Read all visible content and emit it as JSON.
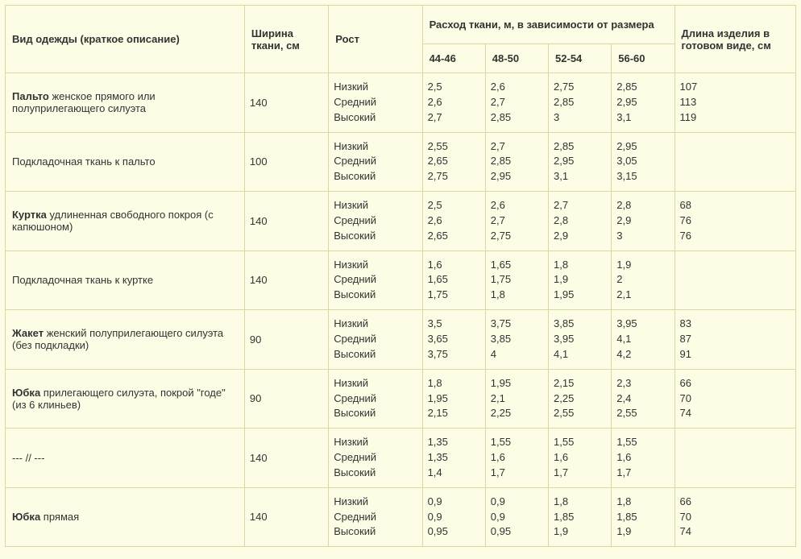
{
  "headers": {
    "desc": "Вид одежды (краткое описание)",
    "width": "Ширина ткани, см",
    "rost": "Рост",
    "fabric_group": "Расход ткани, м, в зависимости от размера",
    "sizes": [
      "44-46",
      "48-50",
      "52-54",
      "56-60"
    ],
    "length": "Длина изделия в готовом виде, см"
  },
  "heights": [
    "Низкий",
    "Средний",
    "Высокий"
  ],
  "rows": [
    {
      "desc_bold": "Пальто",
      "desc_rest": " женское прямого или полуприлегающего силуэта",
      "width": "140",
      "vals": [
        [
          "2,5",
          "2,6",
          "2,75",
          "2,85"
        ],
        [
          "2,6",
          "2,7",
          "2,85",
          "2,95"
        ],
        [
          "2,7",
          "2,85",
          "3",
          "3,1"
        ]
      ],
      "len": [
        "107",
        "113",
        "119"
      ]
    },
    {
      "desc_bold": "",
      "desc_rest": "Подкладочная ткань к пальто",
      "width": "100",
      "vals": [
        [
          "2,55",
          "2,7",
          "2,85",
          "2,95"
        ],
        [
          "2,65",
          "2,85",
          "2,95",
          "3,05"
        ],
        [
          "2,75",
          "2,95",
          "3,1",
          "3,15"
        ]
      ],
      "len": [
        "",
        "",
        ""
      ]
    },
    {
      "desc_bold": "Куртка",
      "desc_rest": " удлиненная свободного покроя (с капюшоном)",
      "width": "140",
      "vals": [
        [
          "2,5",
          "2,6",
          "2,7",
          "2,8"
        ],
        [
          "2,6",
          "2,7",
          "2,8",
          "2,9"
        ],
        [
          "2,65",
          "2,75",
          "2,9",
          "3"
        ]
      ],
      "len": [
        "68",
        "76",
        "76"
      ]
    },
    {
      "desc_bold": "",
      "desc_rest": "Подкладочная ткань к куртке",
      "width": "140",
      "vals": [
        [
          "1,6",
          "1,65",
          "1,8",
          "1,9"
        ],
        [
          "1,65",
          "1,75",
          "1,9",
          "2"
        ],
        [
          "1,75",
          "1,8",
          "1,95",
          "2,1"
        ]
      ],
      "len": [
        "",
        "",
        ""
      ]
    },
    {
      "desc_bold": "Жакет",
      "desc_rest": " женский полуприлегающего силуэта (без подкладки)",
      "width": "90",
      "vals": [
        [
          "3,5",
          "3,75",
          "3,85",
          "3,95"
        ],
        [
          "3,65",
          "3,85",
          "3,95",
          "4,1"
        ],
        [
          "3,75",
          "4",
          "4,1",
          "4,2"
        ]
      ],
      "len": [
        "83",
        "87",
        "91"
      ]
    },
    {
      "desc_bold": "Юбка",
      "desc_rest": " прилегающего силуэта, покрой \"годе\" (из 6 клиньев)",
      "width": "90",
      "vals": [
        [
          "1,8",
          "1,95",
          "2,15",
          "2,3"
        ],
        [
          "1,95",
          "2,1",
          "2,25",
          "2,4"
        ],
        [
          "2,15",
          "2,25",
          "2,55",
          "2,55"
        ]
      ],
      "len": [
        "66",
        "70",
        "74"
      ]
    },
    {
      "desc_bold": "",
      "desc_rest": "--- // ---",
      "width": "140",
      "vals": [
        [
          "1,35",
          "1,55",
          "1,55",
          "1,55"
        ],
        [
          "1,35",
          "1,6",
          "1,6",
          "1,6"
        ],
        [
          "1,4",
          "1,7",
          "1,7",
          "1,7"
        ]
      ],
      "len": [
        "",
        "",
        ""
      ]
    },
    {
      "desc_bold": "Юбка",
      "desc_rest": " прямая",
      "width": "140",
      "vals": [
        [
          "0,9",
          "0,9",
          "1,8",
          "1,8"
        ],
        [
          "0,9",
          "0,9",
          "1,85",
          "1,85"
        ],
        [
          "0,95",
          "0,95",
          "1,9",
          "1,9"
        ]
      ],
      "len": [
        "66",
        "70",
        "74"
      ]
    }
  ]
}
